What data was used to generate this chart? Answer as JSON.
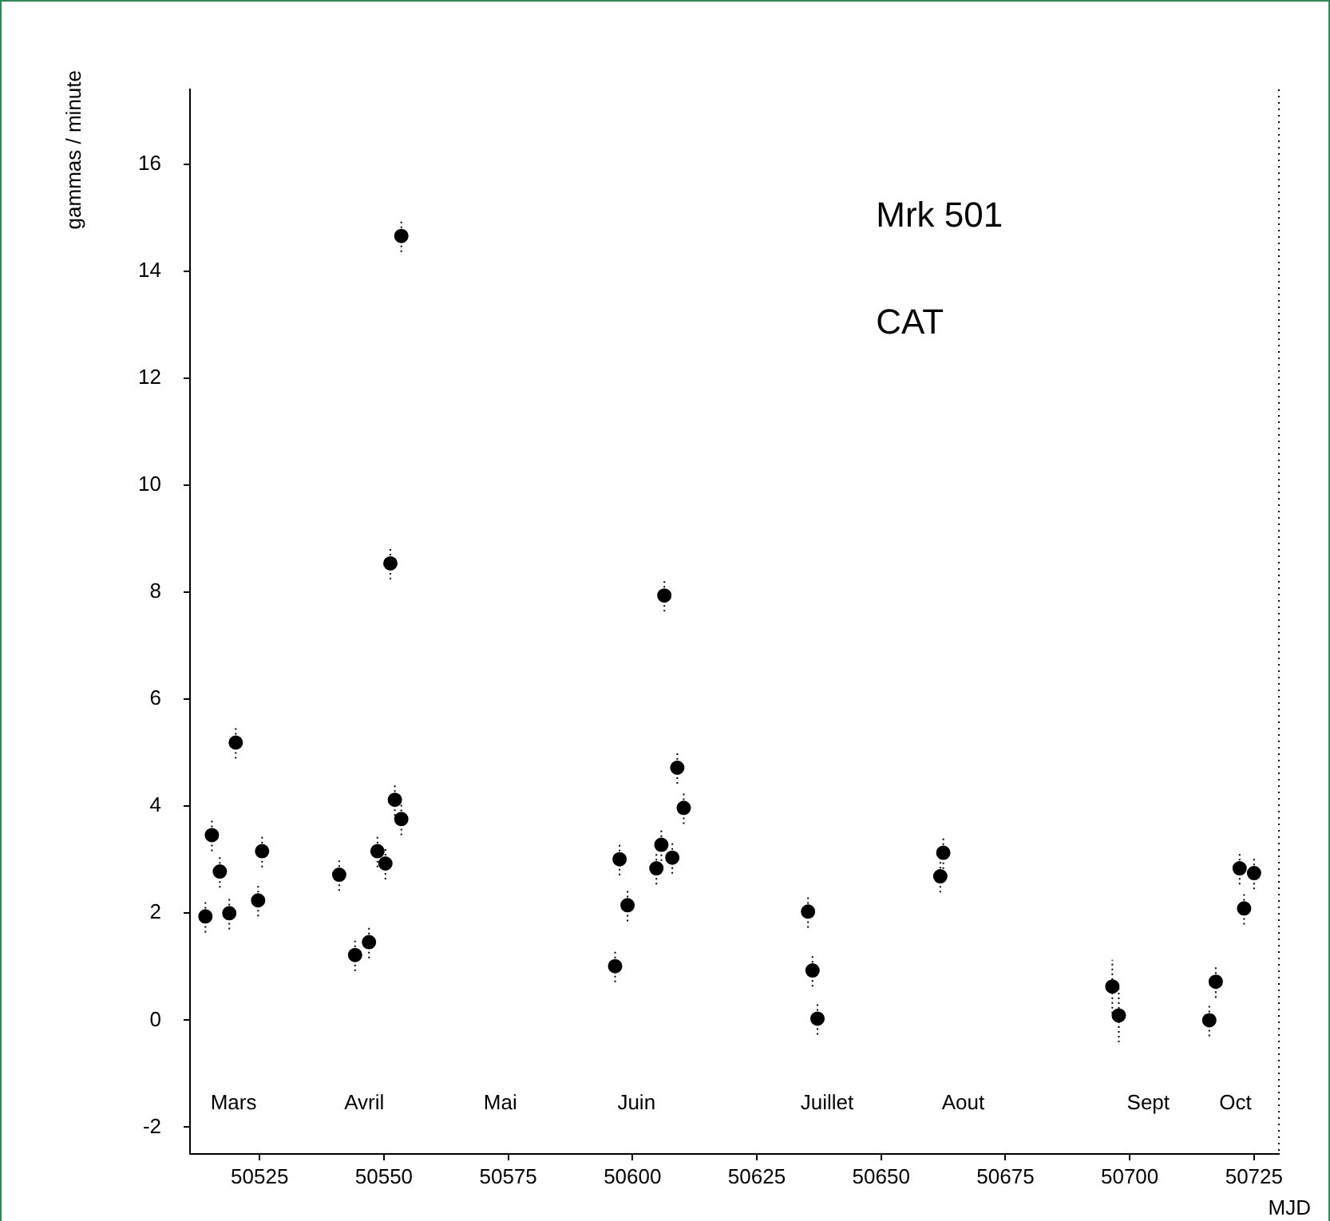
{
  "chart_data": {
    "type": "scatter",
    "xlabel": "MJD",
    "ylabel": "gammas / minute",
    "x": [
      50514.1,
      50515.4,
      50517,
      50518.9,
      50520.2,
      50524.7,
      50525.5,
      50541,
      50544.2,
      50547,
      50548.7,
      50550.3,
      50551.3,
      50552.2,
      50553.5,
      50553.5,
      50596.5,
      50597.4,
      50599,
      50604.8,
      50605.8,
      50606.4,
      50608,
      50609,
      50610.3,
      50635.3,
      50636.2,
      50637.2,
      50661.9,
      50662.5,
      50696.5,
      50697.8,
      50716,
      50717.3,
      50722.1,
      50723,
      50725
    ],
    "values": [
      1.94,
      3.46,
      2.78,
      2.0,
      5.19,
      2.24,
      3.16,
      2.72,
      1.22,
      1.46,
      3.16,
      2.93,
      8.54,
      4.12,
      3.76,
      14.66,
      1.01,
      3.01,
      2.15,
      2.84,
      3.28,
      7.94,
      3.04,
      4.72,
      3.97,
      2.03,
      0.93,
      0.03,
      2.69,
      3.13,
      0.63,
      0.09,
      0.0,
      0.72,
      2.84,
      2.09,
      2.75
    ],
    "errors": [
      0.3,
      0.3,
      0.3,
      0.3,
      0.3,
      0.3,
      0.3,
      0.3,
      0.3,
      0.3,
      0.3,
      0.3,
      0.3,
      0.3,
      0.3,
      0.3,
      0.3,
      0.3,
      0.3,
      0.3,
      0.3,
      0.3,
      0.3,
      0.3,
      0.3,
      0.3,
      0.3,
      0.3,
      0.3,
      0.3,
      0.5,
      0.5,
      0.3,
      0.3,
      0.3,
      0.3,
      0.3
    ],
    "color": "#000000",
    "marker": "circle",
    "grid": false,
    "legend": false,
    "xlim": [
      50511,
      50730
    ],
    "xticks": [
      50525,
      50550,
      50575,
      50600,
      50625,
      50650,
      50675,
      50700,
      50725
    ],
    "ylim": [
      -2.5,
      17.4
    ],
    "yticks": [
      -2,
      0,
      2,
      4,
      6,
      8,
      10,
      12,
      14,
      16
    ],
    "annotations": [
      "Mrk 501",
      "CAT",
      "Mars",
      "Avril",
      "Mai",
      "Juin",
      "Juillet",
      "Aout",
      "Sept",
      "Oct"
    ]
  }
}
